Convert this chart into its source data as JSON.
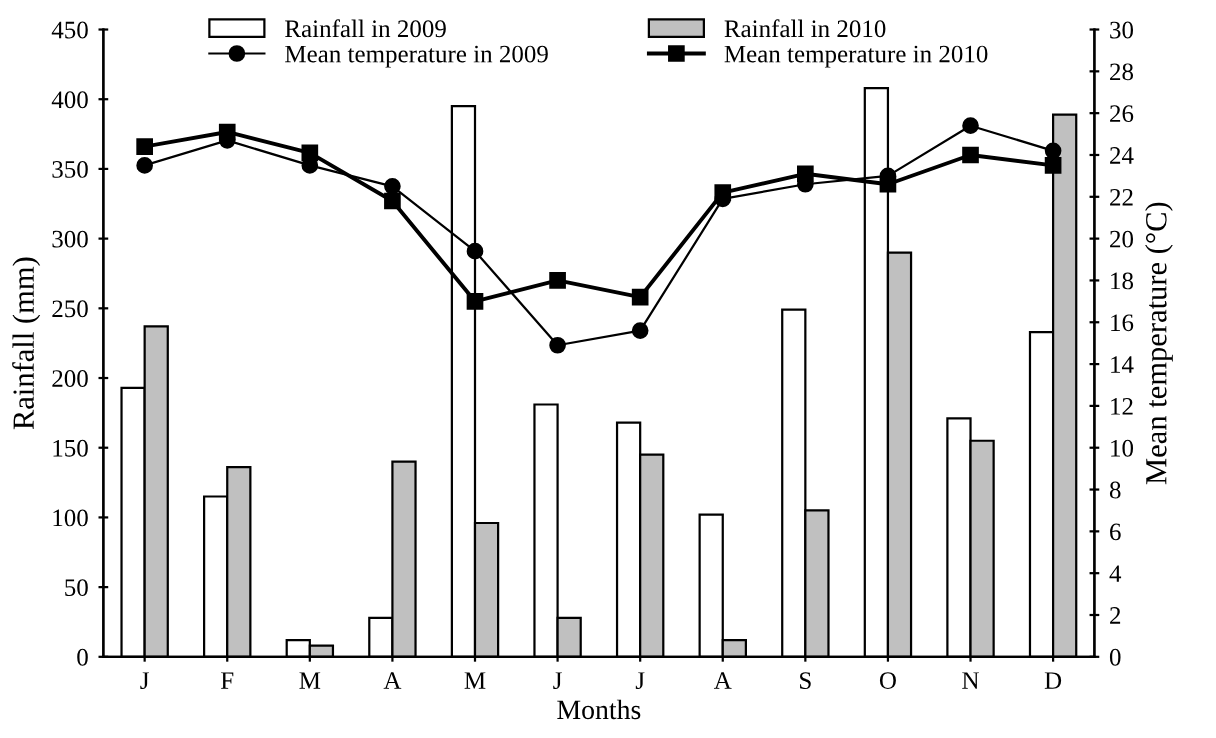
{
  "chart_data": {
    "type": "bar",
    "xlabel": "Months",
    "ylabel": "Rainfall (mm)",
    "y2label": "Mean temperature (°C)",
    "categories": [
      "J",
      "F",
      "M",
      "A",
      "M",
      "J",
      "J",
      "A",
      "S",
      "O",
      "N",
      "D"
    ],
    "series": [
      {
        "name": "Rainfall in 2009",
        "color": "#ffffff",
        "values": [
          193,
          115,
          12,
          28,
          395,
          181,
          168,
          102,
          249,
          408,
          171,
          233
        ]
      },
      {
        "name": "Rainfall in 2010",
        "color": "#c0c0c0",
        "values": [
          237,
          136,
          8,
          140,
          96,
          28,
          145,
          12,
          105,
          290,
          155,
          389
        ]
      },
      {
        "name": "Mean temperature in 2009",
        "type": "line",
        "axis": "y2",
        "color": "#000000",
        "marker": "circle",
        "values": [
          23.5,
          24.7,
          23.5,
          22.5,
          19.4,
          14.9,
          15.6,
          21.9,
          22.6,
          23.0,
          25.4,
          24.2
        ]
      },
      {
        "name": "Mean temperature in 2010",
        "type": "line",
        "axis": "y2",
        "color": "#000000",
        "marker": "square",
        "values": [
          24.4,
          25.1,
          24.1,
          21.8,
          17.0,
          18.0,
          17.2,
          22.2,
          23.1,
          22.6,
          24.0,
          23.5
        ]
      }
    ],
    "ylim": [
      0,
      450
    ],
    "yticks": [
      0,
      50,
      100,
      150,
      200,
      250,
      300,
      350,
      400,
      450
    ],
    "y2lim": [
      0,
      30
    ],
    "y2ticks": [
      0,
      2,
      4,
      6,
      8,
      10,
      12,
      14,
      16,
      18,
      20,
      22,
      24,
      26,
      28,
      30
    ],
    "legend": "top",
    "grid": false
  }
}
